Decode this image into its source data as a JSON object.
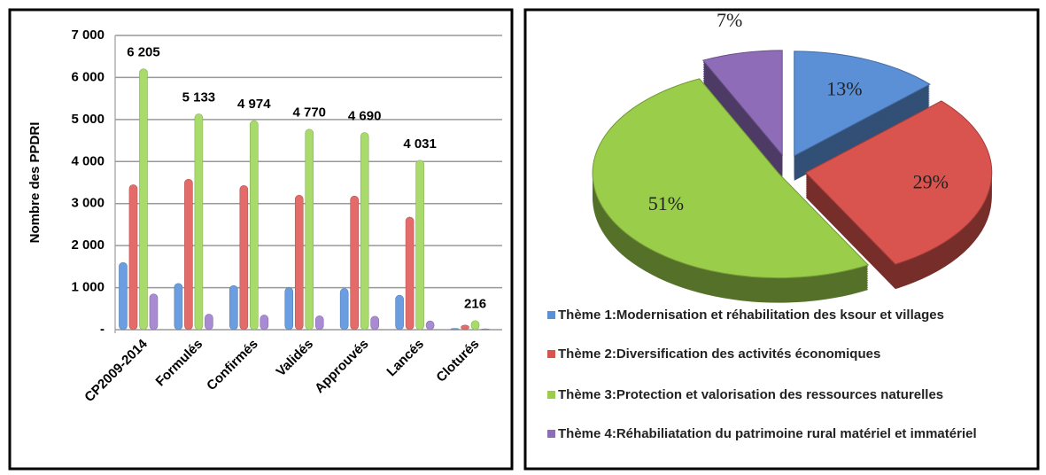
{
  "chart_data": [
    {
      "type": "bar",
      "ylabel": "Nombre des PPDRI",
      "categories": [
        "CP2009-2014",
        "Formulés",
        "Confirmés",
        "Validés",
        "Approuvés",
        "Lancés",
        "Cloturés"
      ],
      "series": [
        {
          "color": "#6a9ee0",
          "values": [
            1600,
            1100,
            1050,
            1000,
            980,
            820,
            30
          ]
        },
        {
          "color": "#e36c6a",
          "values": [
            3450,
            3580,
            3430,
            3200,
            3180,
            2680,
            110
          ]
        },
        {
          "color": "#a8db6c",
          "values": [
            6205,
            5133,
            4974,
            4770,
            4690,
            4031,
            216
          ],
          "value_labels": [
            "6 205",
            "5 133",
            "4 974",
            "4 770",
            "4 690",
            "4 031",
            "216"
          ]
        },
        {
          "color": "#a88bd2",
          "values": [
            850,
            370,
            350,
            330,
            320,
            210,
            20
          ]
        }
      ],
      "ylim": [
        0,
        7000
      ],
      "yticks": [
        {
          "value": 0,
          "label": "-"
        },
        {
          "value": 1000,
          "label": "1 000"
        },
        {
          "value": 2000,
          "label": "2 000"
        },
        {
          "value": 3000,
          "label": "3 000"
        },
        {
          "value": 4000,
          "label": "4 000"
        },
        {
          "value": 5000,
          "label": "5 000"
        },
        {
          "value": 6000,
          "label": "6 000"
        },
        {
          "value": 7000,
          "label": "7 000"
        }
      ],
      "grid": true
    },
    {
      "type": "pie",
      "categories": [
        "Thème 1:Modernisation et réhabilitation des ksour et villages",
        "Thème 2:Diversification des activités économiques",
        "Thème 3:Protection et valorisation des ressources naturelles",
        "Thème 4:Réhabiliatation du patrimoine rural matériel et immatériel"
      ],
      "values": [
        13,
        29,
        51,
        7
      ],
      "value_labels": [
        "13%",
        "29%",
        "51%",
        "7%"
      ],
      "colors": [
        "#5b8fd6",
        "#d9534f",
        "#9acd4a",
        "#8e6cb8"
      ]
    }
  ]
}
